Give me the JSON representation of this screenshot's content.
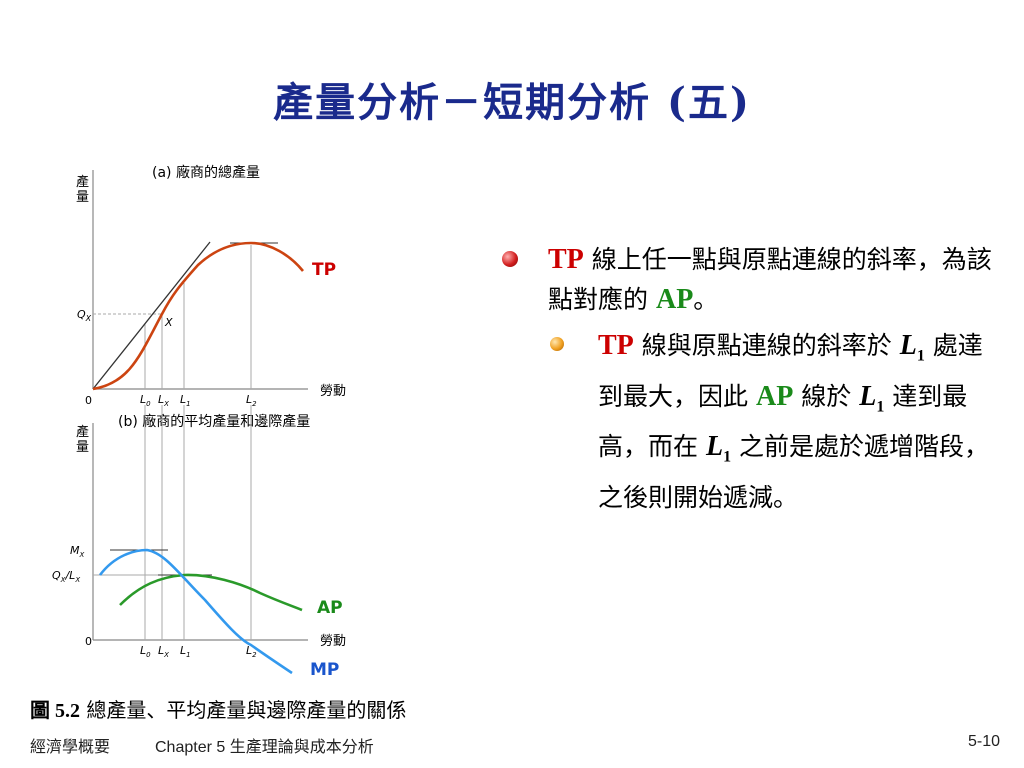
{
  "slide": {
    "title": "產量分析－短期分析 (五)",
    "bullet1": {
      "tp": "TP",
      "text_a": "線上任一點與原點連線的斜率，為該點對應的",
      "ap": "AP",
      "text_b": "。"
    },
    "bullet2": {
      "tp": "TP",
      "text_a": "線與原點連線的斜率於",
      "l1a": "L",
      "sub": "1",
      "text_b": "處達到最大，因此",
      "ap": "AP",
      "text_c": "線於",
      "text_d": "達到最高，而在",
      "text_e": "之前是處於遞增階段，之後則開始遞減。"
    },
    "caption_num": "圖 5.2",
    "caption_text": "總產量、平均產量與邊際產量的關係",
    "footer_left": "經濟學概要",
    "footer_mid": "Chapter 5 生產理論與成本分析",
    "footer_page": "5-10"
  },
  "figure": {
    "panel_a_title": "(a) 廠商的總產量",
    "panel_b_title": "(b) 廠商的平均產量和邊際產量",
    "y_axis_label_1": "產",
    "y_axis_label_2": "量",
    "x_axis_label": "勞動",
    "origin": "0",
    "qx_label": "Q",
    "qx_sub": "X",
    "x_point": "X",
    "mx_label": "M",
    "mx_sub": "X",
    "ratio_label": "Q",
    "ratio_sub1": "X",
    "ratio_mid": "/L",
    "ratio_sub2": "X",
    "tick_l": "L",
    "sub_0": "0",
    "sub_x": "X",
    "sub_1": "1",
    "sub_2": "2",
    "curve_tp": "TP",
    "curve_ap": "AP",
    "curve_mp": "MP",
    "colors": {
      "tp": "#cc4411",
      "ap": "#2a9a2a",
      "mp": "#3399ee",
      "tangent": "#333333"
    }
  }
}
